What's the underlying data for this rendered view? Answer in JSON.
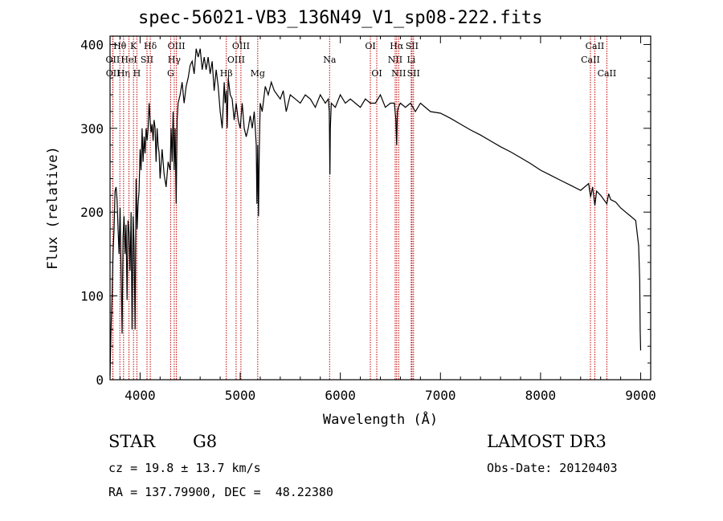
{
  "chart_data": {
    "type": "line",
    "title": "spec-56021-VB3_136N49_V1_sp08-222.fits",
    "xlabel": "Wavelength (Å)",
    "ylabel": "Flux (relative)",
    "xlim": [
      3700,
      9100
    ],
    "ylim": [
      0,
      410
    ],
    "xticks": [
      4000,
      5000,
      6000,
      7000,
      8000,
      9000
    ],
    "yticks": [
      0,
      100,
      200,
      300,
      400
    ],
    "series": [
      {
        "name": "spectrum",
        "x": [
          3700,
          3710,
          3720,
          3730,
          3740,
          3750,
          3760,
          3770,
          3780,
          3790,
          3800,
          3810,
          3820,
          3830,
          3840,
          3850,
          3860,
          3870,
          3880,
          3890,
          3900,
          3910,
          3920,
          3930,
          3940,
          3950,
          3960,
          3970,
          3980,
          3990,
          4000,
          4010,
          4020,
          4030,
          4040,
          4050,
          4060,
          4070,
          4080,
          4090,
          4100,
          4110,
          4120,
          4130,
          4140,
          4150,
          4160,
          4170,
          4180,
          4190,
          4200,
          4220,
          4240,
          4260,
          4280,
          4300,
          4310,
          4320,
          4330,
          4340,
          4350,
          4360,
          4370,
          4380,
          4400,
          4420,
          4440,
          4460,
          4480,
          4500,
          4520,
          4540,
          4560,
          4580,
          4600,
          4620,
          4640,
          4660,
          4680,
          4700,
          4720,
          4740,
          4760,
          4780,
          4800,
          4820,
          4840,
          4850,
          4861,
          4870,
          4880,
          4900,
          4920,
          4940,
          4960,
          4980,
          5000,
          5020,
          5040,
          5060,
          5080,
          5100,
          5120,
          5140,
          5160,
          5167,
          5175,
          5183,
          5190,
          5200,
          5220,
          5250,
          5280,
          5310,
          5340,
          5370,
          5400,
          5430,
          5460,
          5500,
          5550,
          5600,
          5650,
          5700,
          5750,
          5800,
          5850,
          5880,
          5890,
          5896,
          5900,
          5910,
          5950,
          6000,
          6050,
          6100,
          6150,
          6200,
          6250,
          6300,
          6350,
          6400,
          6450,
          6500,
          6540,
          6555,
          6563,
          6570,
          6580,
          6600,
          6650,
          6700,
          6750,
          6800,
          6900,
          7000,
          7100,
          7200,
          7300,
          7400,
          7500,
          7600,
          7700,
          7800,
          7900,
          8000,
          8100,
          8200,
          8300,
          8400,
          8480,
          8500,
          8520,
          8542,
          8560,
          8600,
          8662,
          8680,
          8700,
          8750,
          8800,
          8850,
          8900,
          8950,
          8980,
          8990,
          8995,
          9000
        ],
        "y": [
          5,
          60,
          100,
          150,
          180,
          225,
          230,
          215,
          180,
          150,
          205,
          130,
          55,
          170,
          195,
          150,
          185,
          95,
          190,
          175,
          130,
          200,
          60,
          195,
          160,
          60,
          240,
          180,
          210,
          225,
          275,
          250,
          300,
          260,
          290,
          270,
          300,
          285,
          300,
          330,
          310,
          295,
          305,
          285,
          310,
          300,
          260,
          300,
          280,
          270,
          240,
          275,
          245,
          230,
          260,
          250,
          300,
          260,
          320,
          250,
          300,
          210,
          310,
          330,
          340,
          355,
          330,
          350,
          360,
          375,
          380,
          365,
          395,
          385,
          395,
          370,
          385,
          370,
          385,
          365,
          380,
          345,
          370,
          350,
          320,
          300,
          355,
          330,
          345,
          300,
          360,
          340,
          335,
          310,
          330,
          310,
          300,
          330,
          300,
          290,
          300,
          315,
          300,
          320,
          280,
          210,
          280,
          195,
          270,
          330,
          320,
          350,
          340,
          355,
          345,
          340,
          335,
          345,
          320,
          340,
          335,
          330,
          340,
          335,
          325,
          340,
          330,
          335,
          320,
          245,
          300,
          330,
          325,
          340,
          330,
          335,
          330,
          325,
          335,
          330,
          330,
          340,
          325,
          330,
          330,
          310,
          280,
          320,
          325,
          330,
          325,
          330,
          320,
          330,
          320,
          318,
          312,
          305,
          298,
          292,
          285,
          278,
          272,
          265,
          258,
          250,
          244,
          238,
          232,
          226,
          234,
          218,
          230,
          208,
          225,
          220,
          210,
          222,
          215,
          212,
          205,
          200,
          195,
          190,
          160,
          120,
          60,
          35
        ]
      }
    ],
    "line_markers": [
      {
        "label": "Hθ",
        "wavelength": 3798,
        "row": 0
      },
      {
        "label": "OII",
        "wavelength": 3727,
        "row": 1
      },
      {
        "label": "OII",
        "wavelength": 3729,
        "row": 2
      },
      {
        "label": "Hη",
        "wavelength": 3835,
        "row": 2
      },
      {
        "label": "HeI",
        "wavelength": 3889,
        "row": 1
      },
      {
        "label": "K",
        "wavelength": 3934,
        "row": 0
      },
      {
        "label": "H",
        "wavelength": 3968,
        "row": 2
      },
      {
        "label": "SII",
        "wavelength": 4069,
        "row": 1
      },
      {
        "label": "Hδ",
        "wavelength": 4102,
        "row": 0
      },
      {
        "label": "OIII",
        "wavelength": 4363,
        "row": 0
      },
      {
        "label": "Hγ",
        "wavelength": 4341,
        "row": 1
      },
      {
        "label": "G",
        "wavelength": 4305,
        "row": 2
      },
      {
        "label": "Hβ",
        "wavelength": 4861,
        "row": 2
      },
      {
        "label": "OIII",
        "wavelength": 5007,
        "row": 0
      },
      {
        "label": "OIII",
        "wavelength": 4959,
        "row": 1
      },
      {
        "label": "Mg",
        "wavelength": 5175,
        "row": 2
      },
      {
        "label": "Na",
        "wavelength": 5893,
        "row": 1
      },
      {
        "label": "OI",
        "wavelength": 6300,
        "row": 0
      },
      {
        "label": "OI",
        "wavelength": 6364,
        "row": 2
      },
      {
        "label": "Hα",
        "wavelength": 6563,
        "row": 0
      },
      {
        "label": "NII",
        "wavelength": 6548,
        "row": 1
      },
      {
        "label": "NII",
        "wavelength": 6583,
        "row": 2
      },
      {
        "label": "SII",
        "wavelength": 6716,
        "row": 0
      },
      {
        "label": "Li",
        "wavelength": 6708,
        "row": 1
      },
      {
        "label": "SII",
        "wavelength": 6731,
        "row": 2
      },
      {
        "label": "CaII",
        "wavelength": 8542,
        "row": 0
      },
      {
        "label": "CaII",
        "wavelength": 8498,
        "row": 1
      },
      {
        "label": "CaII",
        "wavelength": 8662,
        "row": 2
      }
    ]
  },
  "info": {
    "object_class": "STAR",
    "subclass": "G8",
    "survey": "LAMOST DR3",
    "cz": "cz = 19.8 ± 13.7 km/s",
    "obs_date": "Obs-Date: 20120403",
    "coords": "RA = 137.79900, DEC =  48.22380"
  },
  "colors": {
    "spectrum": "#000000",
    "marker_line": "#c00000",
    "axes": "#000000"
  }
}
